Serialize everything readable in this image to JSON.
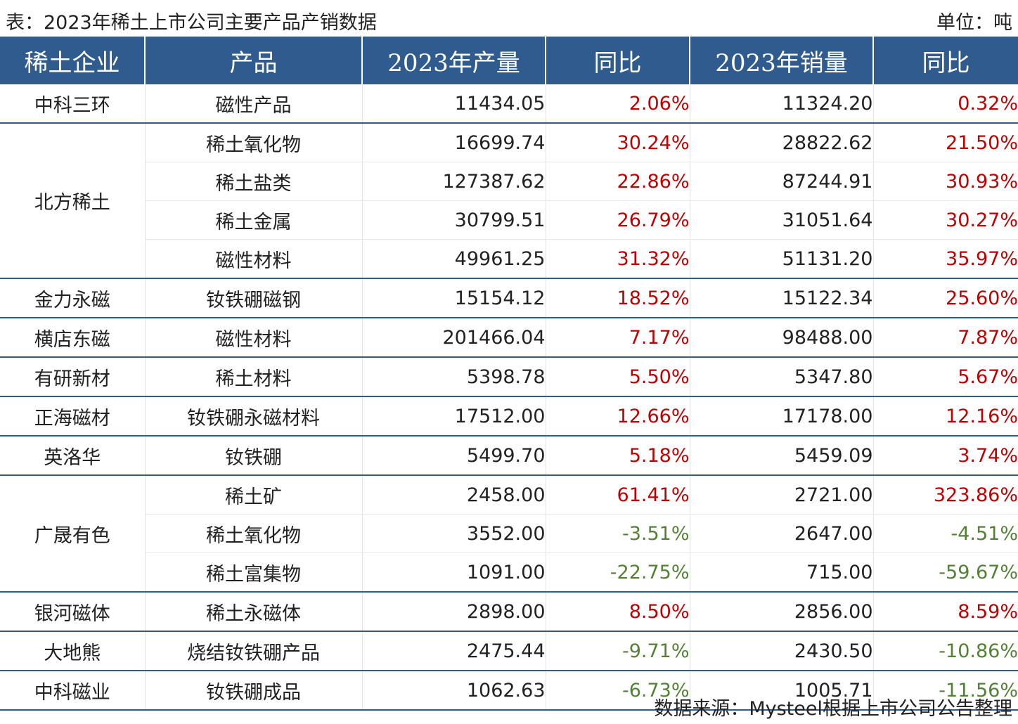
{
  "header": {
    "title": "表：2023年稀土上市公司主要产品产销数据",
    "unit": "单位：吨"
  },
  "chart_data": {
    "type": "table",
    "columns": [
      "稀土企业",
      "产品",
      "2023年产量",
      "同比",
      "2023年销量",
      "同比"
    ],
    "groups": [
      {
        "company": "中科三环",
        "rows": [
          {
            "product": "磁性产品",
            "output": "11434.05",
            "output_yoy": "2.06%",
            "sales": "11324.20",
            "sales_yoy": "0.32%"
          }
        ]
      },
      {
        "company": "北方稀土",
        "rows": [
          {
            "product": "稀土氧化物",
            "output": "16699.74",
            "output_yoy": "30.24%",
            "sales": "28822.62",
            "sales_yoy": "21.50%"
          },
          {
            "product": "稀土盐类",
            "output": "127387.62",
            "output_yoy": "22.86%",
            "sales": "87244.91",
            "sales_yoy": "30.93%"
          },
          {
            "product": "稀土金属",
            "output": "30799.51",
            "output_yoy": "26.79%",
            "sales": "31051.64",
            "sales_yoy": "30.27%"
          },
          {
            "product": "磁性材料",
            "output": "49961.25",
            "output_yoy": "31.32%",
            "sales": "51131.20",
            "sales_yoy": "35.97%"
          }
        ]
      },
      {
        "company": "金力永磁",
        "rows": [
          {
            "product": "钕铁硼磁钢",
            "output": "15154.12",
            "output_yoy": "18.52%",
            "sales": "15122.34",
            "sales_yoy": "25.60%"
          }
        ]
      },
      {
        "company": "横店东磁",
        "rows": [
          {
            "product": "磁性材料",
            "output": "201466.04",
            "output_yoy": "7.17%",
            "sales": "98488.00",
            "sales_yoy": "7.87%"
          }
        ]
      },
      {
        "company": "有研新材",
        "rows": [
          {
            "product": "稀土材料",
            "output": "5398.78",
            "output_yoy": "5.50%",
            "sales": "5347.80",
            "sales_yoy": "5.67%"
          }
        ]
      },
      {
        "company": "正海磁材",
        "rows": [
          {
            "product": "钕铁硼永磁材料",
            "output": "17512.00",
            "output_yoy": "12.66%",
            "sales": "17178.00",
            "sales_yoy": "12.16%"
          }
        ]
      },
      {
        "company": "英洛华",
        "rows": [
          {
            "product": "钕铁硼",
            "output": "5499.70",
            "output_yoy": "5.18%",
            "sales": "5459.09",
            "sales_yoy": "3.74%"
          }
        ]
      },
      {
        "company": "广晟有色",
        "rows": [
          {
            "product": "稀土矿",
            "output": "2458.00",
            "output_yoy": "61.41%",
            "sales": "2721.00",
            "sales_yoy": "323.86%"
          },
          {
            "product": "稀土氧化物",
            "output": "3552.00",
            "output_yoy": "-3.51%",
            "sales": "2647.00",
            "sales_yoy": "-4.51%"
          },
          {
            "product": "稀土富集物",
            "output": "1091.00",
            "output_yoy": "-22.75%",
            "sales": "715.00",
            "sales_yoy": "-59.67%"
          }
        ]
      },
      {
        "company": "银河磁体",
        "rows": [
          {
            "product": "稀土永磁体",
            "output": "2898.00",
            "output_yoy": "8.50%",
            "sales": "2856.00",
            "sales_yoy": "8.59%"
          }
        ]
      },
      {
        "company": "大地熊",
        "rows": [
          {
            "product": "烧结钕铁硼产品",
            "output": "2475.44",
            "output_yoy": "-9.71%",
            "sales": "2430.50",
            "sales_yoy": "-10.86%"
          }
        ]
      },
      {
        "company": "中科磁业",
        "rows": [
          {
            "product": "钕铁硼成品",
            "output": "1062.63",
            "output_yoy": "-6.73%",
            "sales": "1005.71",
            "sales_yoy": "-11.56%"
          }
        ]
      }
    ],
    "colors": {
      "header_bg": "#2f5b8e",
      "positive": "#c00000",
      "negative": "#548235"
    }
  },
  "footer": {
    "source": "数据来源：Mysteel根据上市公司公告整理"
  }
}
